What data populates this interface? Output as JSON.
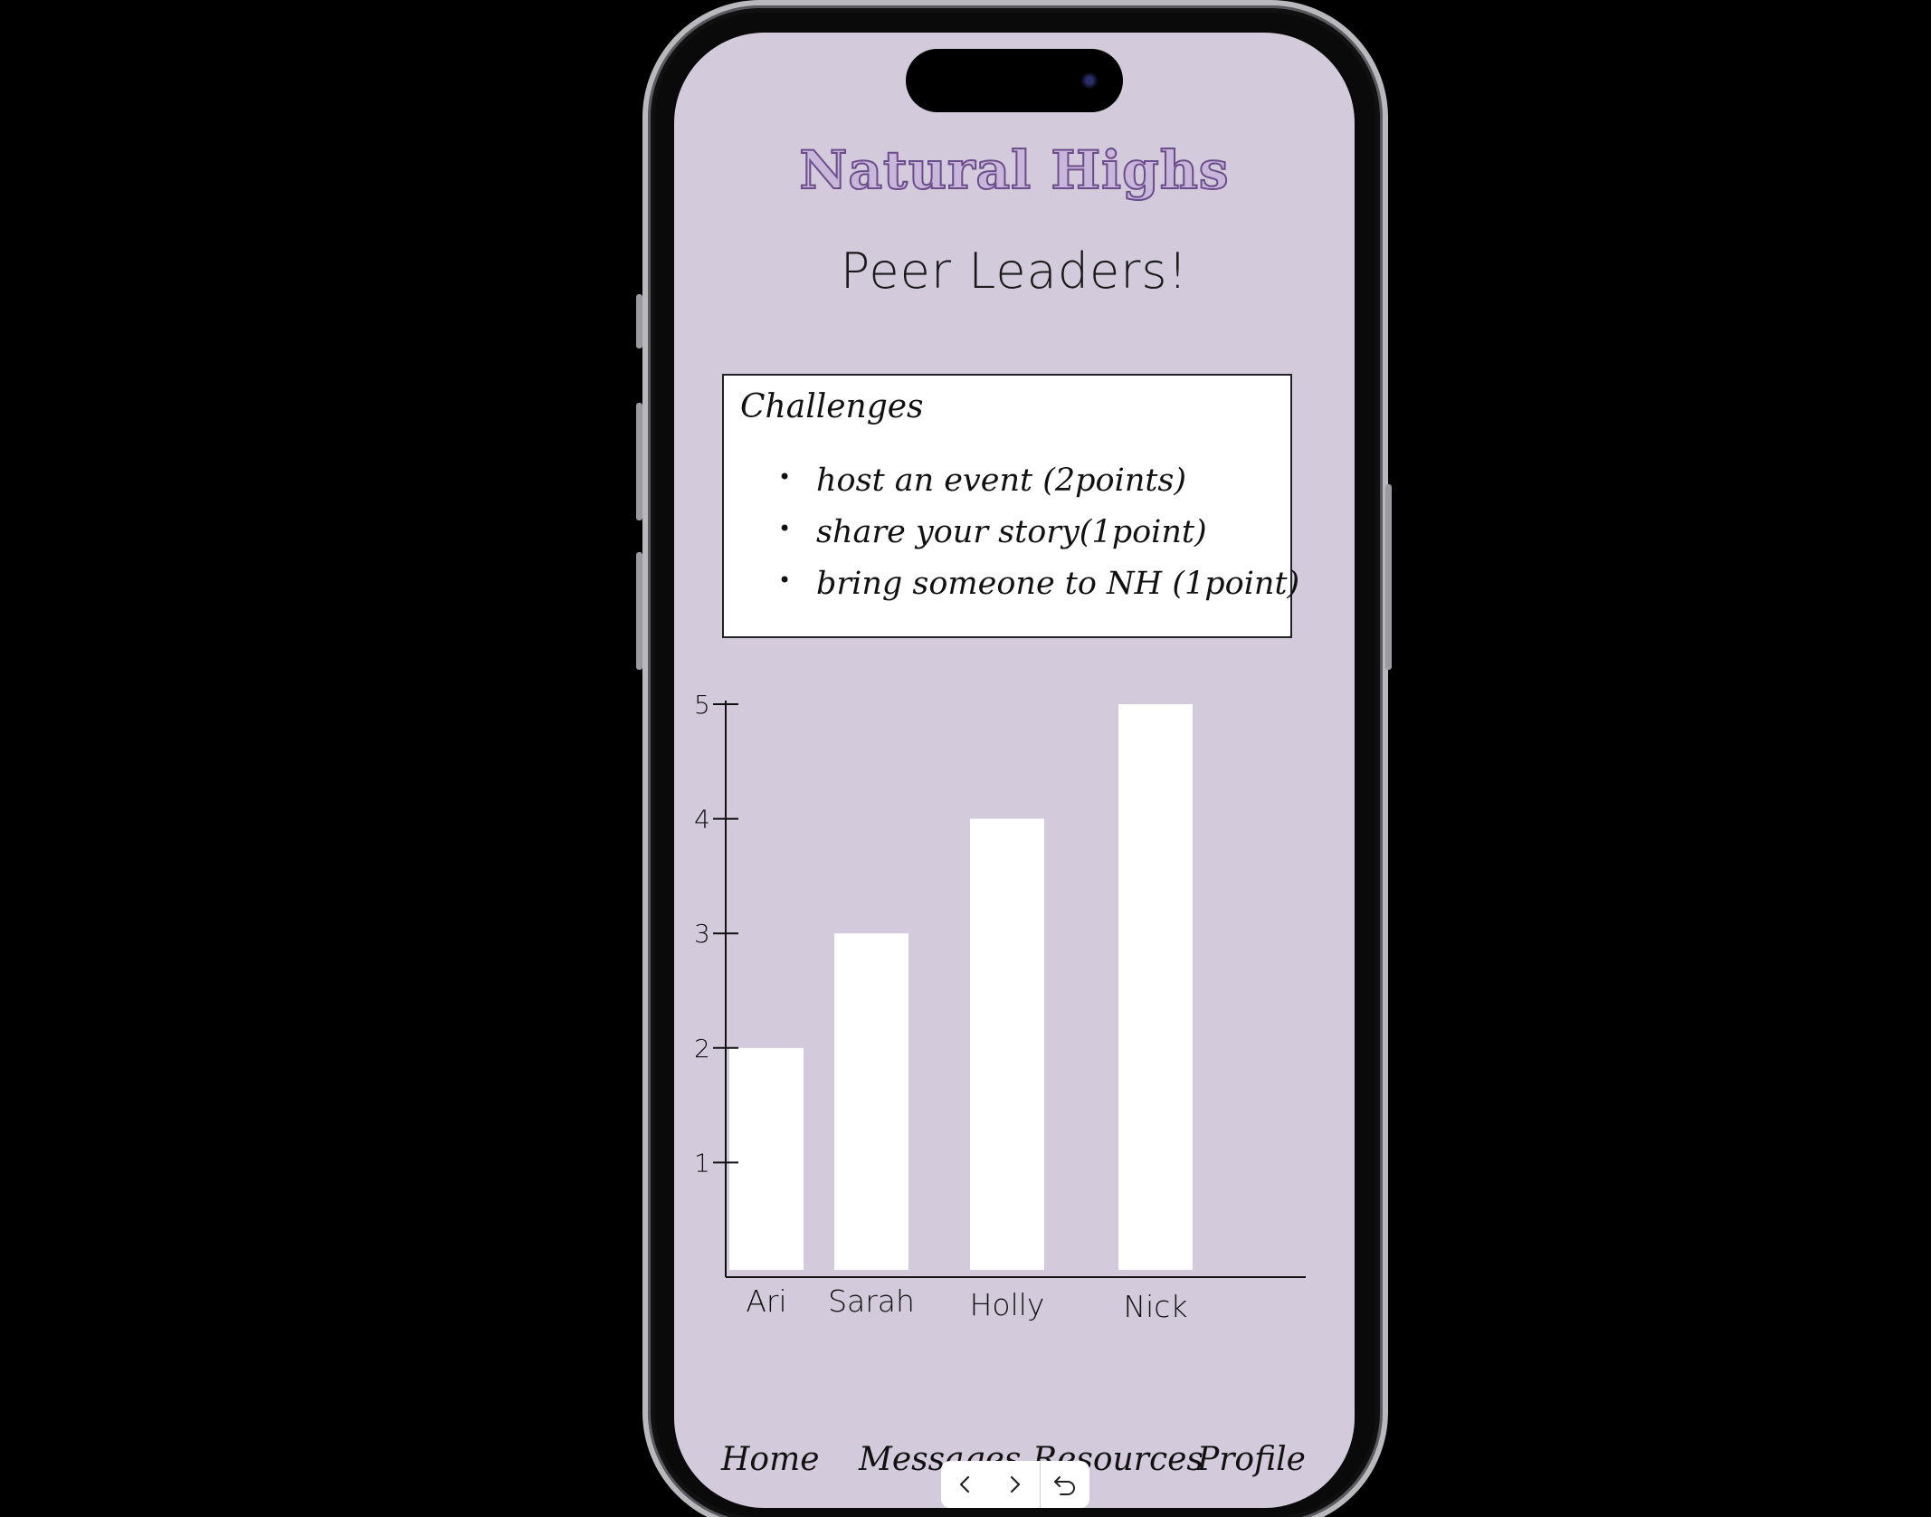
{
  "app": {
    "title": "Natural Highs"
  },
  "page": {
    "title": "Peer Leaders!"
  },
  "challenges": {
    "heading": "Challenges",
    "items": [
      "host an event (2points)",
      "share your story(1point)",
      "bring someone to NH (1point)"
    ]
  },
  "chart_data": {
    "type": "bar",
    "categories": [
      "Ari",
      "Sarah",
      "Holly",
      "Nick"
    ],
    "values": [
      2,
      3,
      4,
      5
    ],
    "ylim": [
      0,
      5
    ],
    "yticks": [
      "1",
      "2",
      "3",
      "4",
      "5"
    ],
    "bar_color": "#ffffff",
    "grid": false
  },
  "tabs": [
    {
      "label": "Home"
    },
    {
      "label": "Messages"
    },
    {
      "label": "Resources"
    },
    {
      "label": "Profile"
    }
  ],
  "nav": {
    "back_icon": "chevron-left-icon",
    "forward_icon": "chevron-right-icon",
    "reset_icon": "undo-icon"
  },
  "colors": {
    "screen_background": "#d3cadb",
    "title_fill": "#c8b6db",
    "title_outline": "#6c4d8c"
  }
}
